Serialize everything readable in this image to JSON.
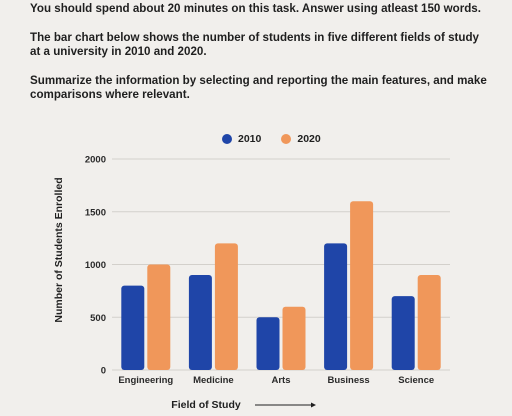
{
  "task": {
    "paragraphs": [
      "You should spend about 20 minutes on this task. Answer using atleast 150 words.",
      "The bar chart below shows the number of students in five different fields of study at a university in 2010 and 2020.",
      "Summarize the information by selecting and reporting the main features, and make comparisons where relevant."
    ]
  },
  "chart_data": {
    "type": "bar",
    "title": "",
    "categories": [
      "Engineering",
      "Medicine",
      "Arts",
      "Business",
      "Science"
    ],
    "series": [
      {
        "name": "2010",
        "color": "#1f45a8",
        "values": [
          800,
          900,
          500,
          1200,
          700
        ]
      },
      {
        "name": "2020",
        "color": "#f0975a",
        "values": [
          1000,
          1200,
          600,
          1600,
          900
        ]
      }
    ],
    "xlabel": "Field of Study",
    "ylabel": "Number of Students Enrolled",
    "ylim": [
      0,
      2000
    ],
    "yticks": [
      0,
      500,
      1000,
      1500,
      2000
    ],
    "grid": true,
    "legend_position": "top-center"
  }
}
